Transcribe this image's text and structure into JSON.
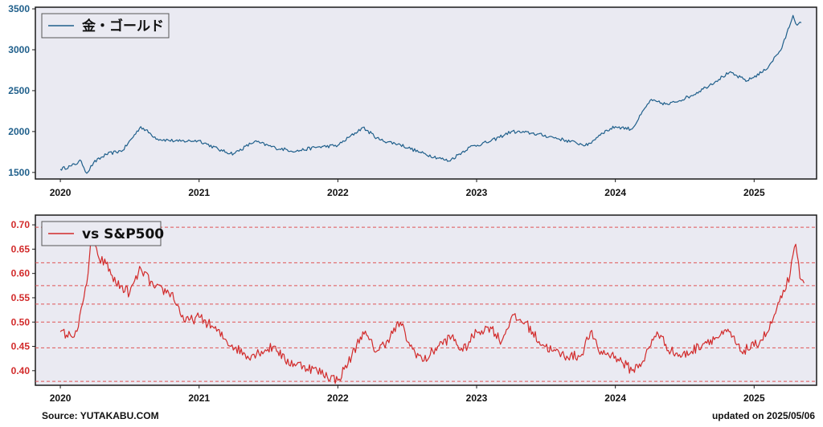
{
  "footer": {
    "source": "Source: YUTAKABU.COM",
    "updated": "updated on 2025/05/06"
  },
  "chart_data": [
    {
      "type": "line",
      "ylim": [
        1420,
        3520
      ],
      "xlim": [
        2019.82,
        2025.45
      ],
      "x_ticks": [
        2020,
        2021,
        2022,
        2023,
        2024,
        2025
      ],
      "y_ticks": [
        1500,
        2000,
        2500,
        3000,
        3500
      ],
      "tick_color": "#1f5f8b",
      "grid": false,
      "legend_position": "upper-left",
      "series": [
        {
          "name": "金・ゴールド",
          "color": "#1f5f8b",
          "points": [
            [
              2020.0,
              1540
            ],
            [
              2020.08,
              1580
            ],
            [
              2020.15,
              1640
            ],
            [
              2020.19,
              1490
            ],
            [
              2020.24,
              1620
            ],
            [
              2020.33,
              1720
            ],
            [
              2020.45,
              1770
            ],
            [
              2020.58,
              2060
            ],
            [
              2020.7,
              1910
            ],
            [
              2020.85,
              1880
            ],
            [
              2021.0,
              1890
            ],
            [
              2021.17,
              1760
            ],
            [
              2021.25,
              1730
            ],
            [
              2021.4,
              1880
            ],
            [
              2021.55,
              1800
            ],
            [
              2021.7,
              1760
            ],
            [
              2021.85,
              1810
            ],
            [
              2022.0,
              1830
            ],
            [
              2022.18,
              2050
            ],
            [
              2022.3,
              1900
            ],
            [
              2022.45,
              1840
            ],
            [
              2022.6,
              1740
            ],
            [
              2022.8,
              1640
            ],
            [
              2022.95,
              1810
            ],
            [
              2023.1,
              1880
            ],
            [
              2023.25,
              2000
            ],
            [
              2023.4,
              1980
            ],
            [
              2023.55,
              1930
            ],
            [
              2023.72,
              1860
            ],
            [
              2023.8,
              1830
            ],
            [
              2023.9,
              1980
            ],
            [
              2024.0,
              2060
            ],
            [
              2024.12,
              2030
            ],
            [
              2024.25,
              2380
            ],
            [
              2024.38,
              2330
            ],
            [
              2024.55,
              2440
            ],
            [
              2024.65,
              2540
            ],
            [
              2024.82,
              2720
            ],
            [
              2024.95,
              2620
            ],
            [
              2025.08,
              2750
            ],
            [
              2025.2,
              3020
            ],
            [
              2025.28,
              3420
            ],
            [
              2025.31,
              3300
            ],
            [
              2025.34,
              3330
            ]
          ]
        }
      ]
    },
    {
      "type": "line",
      "ylim": [
        0.37,
        0.72
      ],
      "xlim": [
        2019.82,
        2025.45
      ],
      "x_ticks": [
        2020,
        2021,
        2022,
        2023,
        2024,
        2025
      ],
      "y_ticks": [
        0.4,
        0.45,
        0.5,
        0.55,
        0.6,
        0.65,
        0.7
      ],
      "h_lines": [
        0.378,
        0.447,
        0.5,
        0.537,
        0.575,
        0.622,
        0.695
      ],
      "tick_color": "#d22b2b",
      "grid": false,
      "legend_position": "upper-left",
      "series": [
        {
          "name": "vs S&P500",
          "color": "#d22b2b",
          "points": [
            [
              2020.0,
              0.48
            ],
            [
              2020.08,
              0.47
            ],
            [
              2020.13,
              0.49
            ],
            [
              2020.17,
              0.55
            ],
            [
              2020.2,
              0.6
            ],
            [
              2020.22,
              0.67
            ],
            [
              2020.28,
              0.63
            ],
            [
              2020.33,
              0.62
            ],
            [
              2020.4,
              0.58
            ],
            [
              2020.5,
              0.56
            ],
            [
              2020.58,
              0.61
            ],
            [
              2020.68,
              0.57
            ],
            [
              2020.8,
              0.56
            ],
            [
              2020.9,
              0.5
            ],
            [
              2021.0,
              0.51
            ],
            [
              2021.1,
              0.49
            ],
            [
              2021.2,
              0.46
            ],
            [
              2021.35,
              0.43
            ],
            [
              2021.45,
              0.44
            ],
            [
              2021.55,
              0.45
            ],
            [
              2021.62,
              0.42
            ],
            [
              2021.75,
              0.41
            ],
            [
              2021.85,
              0.4
            ],
            [
              2022.0,
              0.38
            ],
            [
              2022.1,
              0.43
            ],
            [
              2022.18,
              0.48
            ],
            [
              2022.28,
              0.44
            ],
            [
              2022.35,
              0.46
            ],
            [
              2022.45,
              0.5
            ],
            [
              2022.52,
              0.45
            ],
            [
              2022.62,
              0.42
            ],
            [
              2022.72,
              0.45
            ],
            [
              2022.82,
              0.47
            ],
            [
              2022.9,
              0.44
            ],
            [
              2023.0,
              0.48
            ],
            [
              2023.1,
              0.49
            ],
            [
              2023.18,
              0.46
            ],
            [
              2023.25,
              0.51
            ],
            [
              2023.35,
              0.5
            ],
            [
              2023.45,
              0.46
            ],
            [
              2023.55,
              0.44
            ],
            [
              2023.65,
              0.43
            ],
            [
              2023.75,
              0.43
            ],
            [
              2023.82,
              0.48
            ],
            [
              2023.88,
              0.44
            ],
            [
              2024.0,
              0.43
            ],
            [
              2024.12,
              0.4
            ],
            [
              2024.2,
              0.42
            ],
            [
              2024.3,
              0.48
            ],
            [
              2024.4,
              0.44
            ],
            [
              2024.48,
              0.43
            ],
            [
              2024.55,
              0.44
            ],
            [
              2024.65,
              0.46
            ],
            [
              2024.75,
              0.47
            ],
            [
              2024.82,
              0.48
            ],
            [
              2024.9,
              0.44
            ],
            [
              2025.0,
              0.45
            ],
            [
              2025.1,
              0.48
            ],
            [
              2025.2,
              0.55
            ],
            [
              2025.26,
              0.6
            ],
            [
              2025.3,
              0.66
            ],
            [
              2025.33,
              0.59
            ],
            [
              2025.36,
              0.58
            ]
          ]
        }
      ]
    }
  ]
}
